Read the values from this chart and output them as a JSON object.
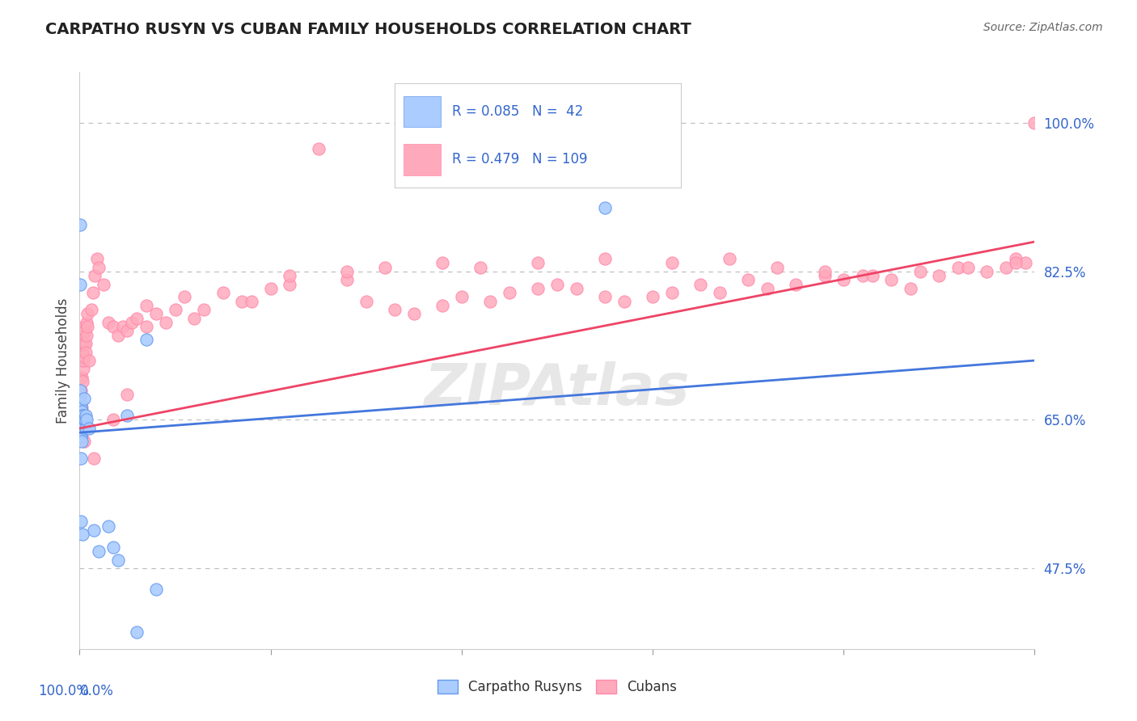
{
  "title": "CARPATHO RUSYN VS CUBAN FAMILY HOUSEHOLDS CORRELATION CHART",
  "source": "Source: ZipAtlas.com",
  "ylabel": "Family Households",
  "yticks": [
    47.5,
    65.0,
    82.5,
    100.0
  ],
  "ytick_labels": [
    "47.5%",
    "65.0%",
    "82.5%",
    "100.0%"
  ],
  "xlim": [
    0.0,
    100.0
  ],
  "ylim": [
    38.0,
    106.0
  ],
  "blue_scatter_color": "#aaccff",
  "blue_scatter_edge": "#6699ee",
  "pink_scatter_color": "#ffaabc",
  "pink_scatter_edge": "#ff88aa",
  "blue_line_color": "#4477dd",
  "pink_line_color": "#ee4466",
  "blue_R": 0.085,
  "blue_N": 42,
  "pink_R": 0.479,
  "pink_N": 109,
  "blue_line_start_y": 63.5,
  "blue_line_end_y": 72.0,
  "pink_line_start_y": 64.0,
  "pink_line_end_y": 86.0,
  "blue_x": [
    0.05,
    0.05,
    0.08,
    0.08,
    0.1,
    0.1,
    0.1,
    0.1,
    0.1,
    0.12,
    0.12,
    0.15,
    0.15,
    0.18,
    0.2,
    0.2,
    0.22,
    0.25,
    0.3,
    0.35,
    0.4,
    0.5,
    0.5,
    0.55,
    0.6,
    0.65,
    0.7,
    1.0,
    1.5,
    2.0,
    3.0,
    4.0,
    5.0,
    6.0,
    7.0,
    8.0,
    3.5,
    0.08,
    0.05,
    0.12,
    0.3,
    55.0
  ],
  "blue_y": [
    65.0,
    68.5,
    66.0,
    63.5,
    64.5,
    66.5,
    63.0,
    60.5,
    67.0,
    64.0,
    65.5,
    65.0,
    66.5,
    64.5,
    65.0,
    63.5,
    66.0,
    62.5,
    65.5,
    64.5,
    65.5,
    65.0,
    67.5,
    65.0,
    64.0,
    65.5,
    65.0,
    64.0,
    52.0,
    49.5,
    52.5,
    48.5,
    65.5,
    40.0,
    74.5,
    45.0,
    50.0,
    88.0,
    81.0,
    53.0,
    51.5,
    90.0
  ],
  "pink_x": [
    0.05,
    0.08,
    0.1,
    0.12,
    0.15,
    0.15,
    0.15,
    0.18,
    0.2,
    0.22,
    0.25,
    0.3,
    0.3,
    0.35,
    0.38,
    0.4,
    0.4,
    0.45,
    0.5,
    0.5,
    0.55,
    0.6,
    0.65,
    0.7,
    0.75,
    0.8,
    0.85,
    1.0,
    1.2,
    1.4,
    1.6,
    1.8,
    2.0,
    2.5,
    3.0,
    3.5,
    4.0,
    4.5,
    5.0,
    5.5,
    6.0,
    7.0,
    8.0,
    9.0,
    10.0,
    11.0,
    13.0,
    15.0,
    17.0,
    20.0,
    22.0,
    25.0,
    28.0,
    30.0,
    33.0,
    35.0,
    38.0,
    40.0,
    43.0,
    45.0,
    48.0,
    50.0,
    52.0,
    55.0,
    57.0,
    60.0,
    62.0,
    65.0,
    67.0,
    70.0,
    72.0,
    75.0,
    78.0,
    80.0,
    82.0,
    85.0,
    87.0,
    90.0,
    92.0,
    95.0,
    97.0,
    98.0,
    99.0,
    100.0,
    18.0,
    22.0,
    28.0,
    32.0,
    38.0,
    42.0,
    48.0,
    55.0,
    62.0,
    68.0,
    73.0,
    78.0,
    83.0,
    88.0,
    93.0,
    98.0,
    12.0,
    7.0,
    5.0,
    3.5,
    1.5,
    0.5,
    0.3,
    0.2,
    0.1
  ],
  "pink_y": [
    66.0,
    64.0,
    68.5,
    65.0,
    68.0,
    72.0,
    70.0,
    66.5,
    75.5,
    73.5,
    70.0,
    69.5,
    73.0,
    75.0,
    71.0,
    74.0,
    72.0,
    74.0,
    76.0,
    72.5,
    75.5,
    74.0,
    73.0,
    75.0,
    76.5,
    77.5,
    76.0,
    72.0,
    78.0,
    80.0,
    82.0,
    84.0,
    83.0,
    81.0,
    76.5,
    76.0,
    75.0,
    76.0,
    75.5,
    76.5,
    77.0,
    78.5,
    77.5,
    76.5,
    78.0,
    79.5,
    78.0,
    80.0,
    79.0,
    80.5,
    81.0,
    97.0,
    81.5,
    79.0,
    78.0,
    77.5,
    78.5,
    79.5,
    79.0,
    80.0,
    80.5,
    81.0,
    80.5,
    79.5,
    79.0,
    79.5,
    80.0,
    81.0,
    80.0,
    81.5,
    80.5,
    81.0,
    82.0,
    81.5,
    82.0,
    81.5,
    80.5,
    82.0,
    83.0,
    82.5,
    83.0,
    84.0,
    83.5,
    100.0,
    79.0,
    82.0,
    82.5,
    83.0,
    83.5,
    83.0,
    83.5,
    84.0,
    83.5,
    84.0,
    83.0,
    82.5,
    82.0,
    82.5,
    83.0,
    83.5,
    77.0,
    76.0,
    68.0,
    65.0,
    60.5,
    62.5,
    65.5,
    63.0,
    64.5
  ]
}
